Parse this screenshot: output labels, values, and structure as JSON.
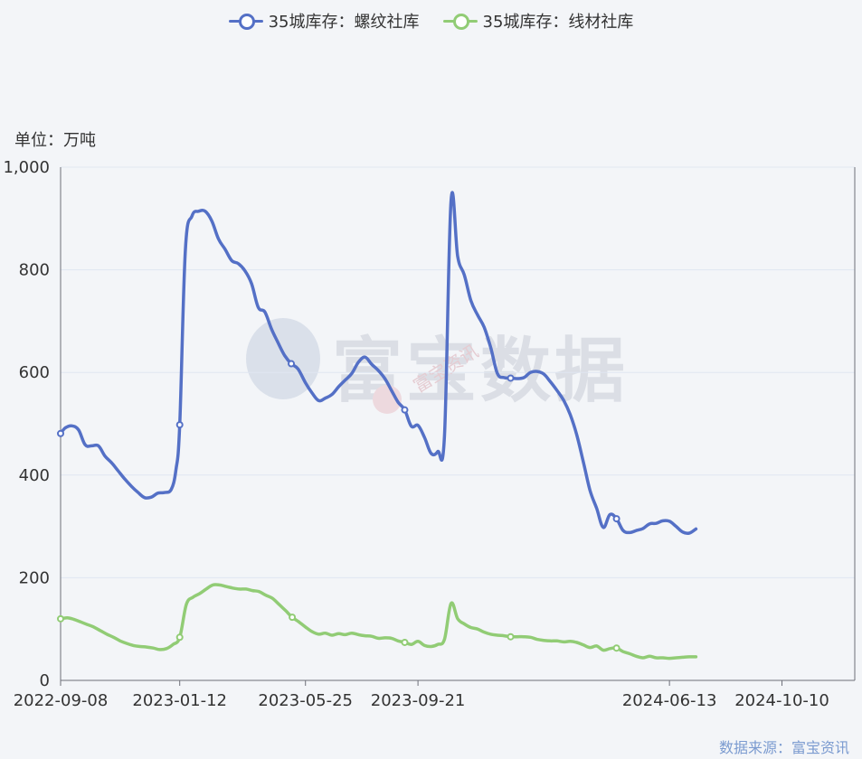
{
  "legend": {
    "rebar_label": "35城库存：螺纹社库",
    "wire_label": "35城库存：线材社库"
  },
  "unit_label": "单位：万吨",
  "source_label": "数据来源：富宝资讯",
  "watermark": {
    "main": "富宝数据",
    "sub": "富宝资讯"
  },
  "colors": {
    "rebar": "#5470c6",
    "wire": "#91cc75",
    "grid": "#e0e6f1",
    "axis": "#6e7079",
    "text": "#333333"
  },
  "chart_data": {
    "type": "line",
    "x_start": "2022-09-08",
    "x_end": "2024-12-26",
    "x_tick_labels": [
      "2022-09-08",
      "2023-01-12",
      "2023-05-25",
      "2023-09-21",
      "2024-06-13",
      "2024-10-10"
    ],
    "y_ticks": [
      0,
      200,
      400,
      600,
      800,
      1000
    ],
    "y_tick_labels": [
      "0",
      "200",
      "400",
      "600",
      "800",
      "1,000"
    ],
    "ylim": [
      0,
      1000
    ],
    "ylabel": "单位：万吨",
    "grid": "horizontal",
    "legend_position": "top",
    "series": [
      {
        "name": "35城库存：螺纹社库",
        "color": "#5470c6",
        "points": [
          [
            "2022-09-08",
            481
          ],
          [
            "2022-09-13",
            492
          ],
          [
            "2022-09-20",
            496
          ],
          [
            "2022-09-27",
            488
          ],
          [
            "2022-10-04",
            459
          ],
          [
            "2022-10-11",
            457
          ],
          [
            "2022-10-18",
            457
          ],
          [
            "2022-10-25",
            437
          ],
          [
            "2022-11-01",
            424
          ],
          [
            "2022-11-08",
            408
          ],
          [
            "2022-11-15",
            392
          ],
          [
            "2022-11-22",
            378
          ],
          [
            "2022-11-29",
            366
          ],
          [
            "2022-12-06",
            356
          ],
          [
            "2022-12-13",
            357
          ],
          [
            "2022-12-20",
            365
          ],
          [
            "2022-12-27",
            366
          ],
          [
            "2023-01-03",
            372
          ],
          [
            "2023-01-08",
            410
          ],
          [
            "2023-01-12",
            498
          ],
          [
            "2023-01-18",
            840
          ],
          [
            "2023-01-25",
            905
          ],
          [
            "2023-02-01",
            914
          ],
          [
            "2023-02-08",
            914
          ],
          [
            "2023-02-15",
            895
          ],
          [
            "2023-02-22",
            860
          ],
          [
            "2023-03-01",
            840
          ],
          [
            "2023-03-08",
            818
          ],
          [
            "2023-03-15",
            812
          ],
          [
            "2023-03-22",
            798
          ],
          [
            "2023-03-29",
            773
          ],
          [
            "2023-04-05",
            727
          ],
          [
            "2023-04-12",
            718
          ],
          [
            "2023-04-19",
            685
          ],
          [
            "2023-04-26",
            658
          ],
          [
            "2023-05-03",
            633
          ],
          [
            "2023-05-10",
            617
          ],
          [
            "2023-05-17",
            607
          ],
          [
            "2023-05-25",
            580
          ],
          [
            "2023-06-01",
            560
          ],
          [
            "2023-06-08",
            545
          ],
          [
            "2023-06-15",
            550
          ],
          [
            "2023-06-22",
            557
          ],
          [
            "2023-06-29",
            572
          ],
          [
            "2023-07-06",
            585
          ],
          [
            "2023-07-13",
            598
          ],
          [
            "2023-07-20",
            620
          ],
          [
            "2023-07-27",
            630
          ],
          [
            "2023-08-03",
            616
          ],
          [
            "2023-08-10",
            604
          ],
          [
            "2023-08-17",
            588
          ],
          [
            "2023-08-24",
            565
          ],
          [
            "2023-08-31",
            542
          ],
          [
            "2023-09-07",
            527
          ],
          [
            "2023-09-14",
            495
          ],
          [
            "2023-09-21",
            497
          ],
          [
            "2023-09-28",
            473
          ],
          [
            "2023-10-05",
            442
          ],
          [
            "2023-10-12",
            446
          ],
          [
            "2023-10-19",
            476
          ],
          [
            "2023-10-26",
            935
          ],
          [
            "2023-11-02",
            826
          ],
          [
            "2023-11-09",
            790
          ],
          [
            "2023-11-16",
            740
          ],
          [
            "2023-11-23",
            712
          ],
          [
            "2023-11-30",
            688
          ],
          [
            "2023-12-07",
            648
          ],
          [
            "2023-12-14",
            598
          ],
          [
            "2023-12-21",
            590
          ],
          [
            "2023-12-28",
            589
          ],
          [
            "2024-01-04",
            588
          ],
          [
            "2024-01-11",
            590
          ],
          [
            "2024-01-18",
            600
          ],
          [
            "2024-01-25",
            602
          ],
          [
            "2024-02-01",
            597
          ],
          [
            "2024-02-08",
            582
          ],
          [
            "2024-02-15",
            565
          ],
          [
            "2024-02-22",
            546
          ],
          [
            "2024-02-29",
            518
          ],
          [
            "2024-03-07",
            478
          ],
          [
            "2024-03-14",
            425
          ],
          [
            "2024-03-21",
            370
          ],
          [
            "2024-03-28",
            335
          ],
          [
            "2024-04-04",
            298
          ],
          [
            "2024-04-11",
            323
          ],
          [
            "2024-04-18",
            315
          ],
          [
            "2024-04-25",
            292
          ],
          [
            "2024-05-02",
            288
          ],
          [
            "2024-05-09",
            292
          ],
          [
            "2024-05-16",
            296
          ],
          [
            "2024-05-23",
            305
          ],
          [
            "2024-05-30",
            306
          ],
          [
            "2024-06-06",
            311
          ],
          [
            "2024-06-13",
            310
          ],
          [
            "2024-06-20",
            300
          ],
          [
            "2024-06-27",
            289
          ],
          [
            "2024-07-04",
            287
          ],
          [
            "2024-07-11",
            295
          ]
        ],
        "markers": [
          "2022-09-08",
          "2023-01-12",
          "2023-05-10",
          "2023-09-07",
          "2023-12-28",
          "2024-04-18"
        ]
      },
      {
        "name": "35城库存：线材社库",
        "color": "#91cc75",
        "points": [
          [
            "2022-09-08",
            120
          ],
          [
            "2022-09-15",
            122
          ],
          [
            "2022-09-22",
            119
          ],
          [
            "2022-09-29",
            114
          ],
          [
            "2022-10-06",
            109
          ],
          [
            "2022-10-13",
            104
          ],
          [
            "2022-10-20",
            97
          ],
          [
            "2022-10-27",
            90
          ],
          [
            "2022-11-03",
            84
          ],
          [
            "2022-11-10",
            77
          ],
          [
            "2022-11-17",
            72
          ],
          [
            "2022-11-24",
            68
          ],
          [
            "2022-12-01",
            66
          ],
          [
            "2022-12-08",
            65
          ],
          [
            "2022-12-15",
            63
          ],
          [
            "2022-12-22",
            60
          ],
          [
            "2022-12-29",
            62
          ],
          [
            "2023-01-05",
            70
          ],
          [
            "2023-01-12",
            84
          ],
          [
            "2023-01-19",
            148
          ],
          [
            "2023-01-26",
            162
          ],
          [
            "2023-02-02",
            169
          ],
          [
            "2023-02-09",
            178
          ],
          [
            "2023-02-16",
            186
          ],
          [
            "2023-02-23",
            186
          ],
          [
            "2023-03-02",
            183
          ],
          [
            "2023-03-09",
            180
          ],
          [
            "2023-03-16",
            178
          ],
          [
            "2023-03-23",
            178
          ],
          [
            "2023-03-30",
            175
          ],
          [
            "2023-04-06",
            173
          ],
          [
            "2023-04-13",
            166
          ],
          [
            "2023-04-20",
            160
          ],
          [
            "2023-04-27",
            148
          ],
          [
            "2023-05-04",
            136
          ],
          [
            "2023-05-11",
            123
          ],
          [
            "2023-05-18",
            114
          ],
          [
            "2023-05-25",
            104
          ],
          [
            "2023-06-01",
            95
          ],
          [
            "2023-06-08",
            90
          ],
          [
            "2023-06-15",
            92
          ],
          [
            "2023-06-22",
            88
          ],
          [
            "2023-06-29",
            91
          ],
          [
            "2023-07-06",
            89
          ],
          [
            "2023-07-13",
            92
          ],
          [
            "2023-07-20",
            89
          ],
          [
            "2023-07-27",
            87
          ],
          [
            "2023-08-03",
            86
          ],
          [
            "2023-08-10",
            82
          ],
          [
            "2023-08-17",
            83
          ],
          [
            "2023-08-24",
            82
          ],
          [
            "2023-08-31",
            77
          ],
          [
            "2023-09-07",
            74
          ],
          [
            "2023-09-14",
            70
          ],
          [
            "2023-09-21",
            76
          ],
          [
            "2023-09-28",
            68
          ],
          [
            "2023-10-05",
            66
          ],
          [
            "2023-10-12",
            70
          ],
          [
            "2023-10-19",
            80
          ],
          [
            "2023-10-26",
            150
          ],
          [
            "2023-11-02",
            120
          ],
          [
            "2023-11-09",
            110
          ],
          [
            "2023-11-16",
            103
          ],
          [
            "2023-11-23",
            100
          ],
          [
            "2023-11-30",
            94
          ],
          [
            "2023-12-07",
            90
          ],
          [
            "2023-12-14",
            88
          ],
          [
            "2023-12-21",
            87
          ],
          [
            "2023-12-28",
            85
          ],
          [
            "2024-01-04",
            85
          ],
          [
            "2024-01-11",
            85
          ],
          [
            "2024-01-18",
            84
          ],
          [
            "2024-01-25",
            80
          ],
          [
            "2024-02-01",
            78
          ],
          [
            "2024-02-08",
            77
          ],
          [
            "2024-02-15",
            77
          ],
          [
            "2024-02-22",
            75
          ],
          [
            "2024-02-29",
            76
          ],
          [
            "2024-03-07",
            74
          ],
          [
            "2024-03-14",
            69
          ],
          [
            "2024-03-21",
            64
          ],
          [
            "2024-03-28",
            67
          ],
          [
            "2024-04-04",
            59
          ],
          [
            "2024-04-11",
            62
          ],
          [
            "2024-04-18",
            63
          ],
          [
            "2024-04-25",
            56
          ],
          [
            "2024-05-02",
            52
          ],
          [
            "2024-05-09",
            47
          ],
          [
            "2024-05-16",
            44
          ],
          [
            "2024-05-23",
            47
          ],
          [
            "2024-05-30",
            44
          ],
          [
            "2024-06-06",
            44
          ],
          [
            "2024-06-13",
            43
          ],
          [
            "2024-06-20",
            44
          ],
          [
            "2024-06-27",
            45
          ],
          [
            "2024-07-04",
            46
          ],
          [
            "2024-07-11",
            46
          ]
        ],
        "markers": [
          "2022-09-08",
          "2023-01-12",
          "2023-05-11",
          "2023-09-07",
          "2023-12-28",
          "2024-04-18"
        ]
      }
    ]
  }
}
